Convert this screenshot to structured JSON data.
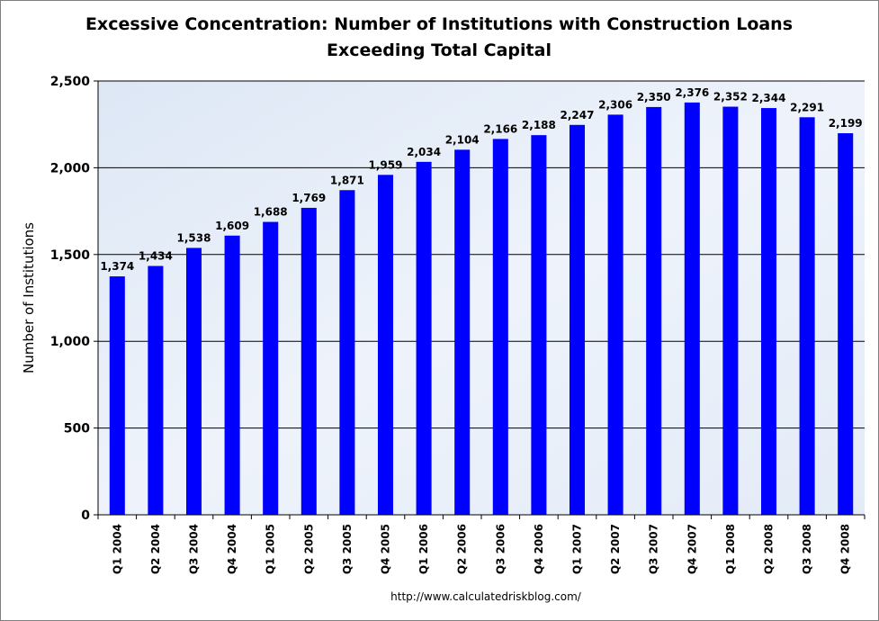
{
  "chart_data": {
    "type": "bar",
    "title": "Excessive Concentration: Number of Institutions with Construction Loans",
    "subtitle": "Exceeding Total Capital",
    "xlabel": "",
    "ylabel": "Number of Institutions",
    "ylim": [
      0,
      2500
    ],
    "yticks": [
      0,
      500,
      1000,
      1500,
      2000,
      2500
    ],
    "ytick_labels": [
      "0",
      "500",
      "1,000",
      "1,500",
      "2,000",
      "2,500"
    ],
    "grid": true,
    "categories": [
      "Q1 2004",
      "Q2 2004",
      "Q3 2004",
      "Q4 2004",
      "Q1 2005",
      "Q2 2005",
      "Q3 2005",
      "Q4 2005",
      "Q1 2006",
      "Q2 2006",
      "Q3 2006",
      "Q4 2006",
      "Q1 2007",
      "Q2 2007",
      "Q3 2007",
      "Q4 2007",
      "Q1 2008",
      "Q2 2008",
      "Q3 2008",
      "Q4 2008"
    ],
    "values": [
      1374,
      1434,
      1538,
      1609,
      1688,
      1769,
      1871,
      1959,
      2034,
      2104,
      2166,
      2188,
      2247,
      2306,
      2350,
      2376,
      2352,
      2344,
      2291,
      2199
    ],
    "data_labels": [
      "1,374",
      "1,434",
      "1,538",
      "1,609",
      "1,688",
      "1,769",
      "1,871",
      "1,959",
      "2,034",
      "2,104",
      "2,166",
      "2,188",
      "2,247",
      "2,306",
      "2,350",
      "2,376",
      "2,352",
      "2,344",
      "2,291",
      "2,199"
    ],
    "bar_color": "#0000ff",
    "plot_background": "#e6eef8"
  },
  "source": "http://www.calculatedriskblog.com/"
}
